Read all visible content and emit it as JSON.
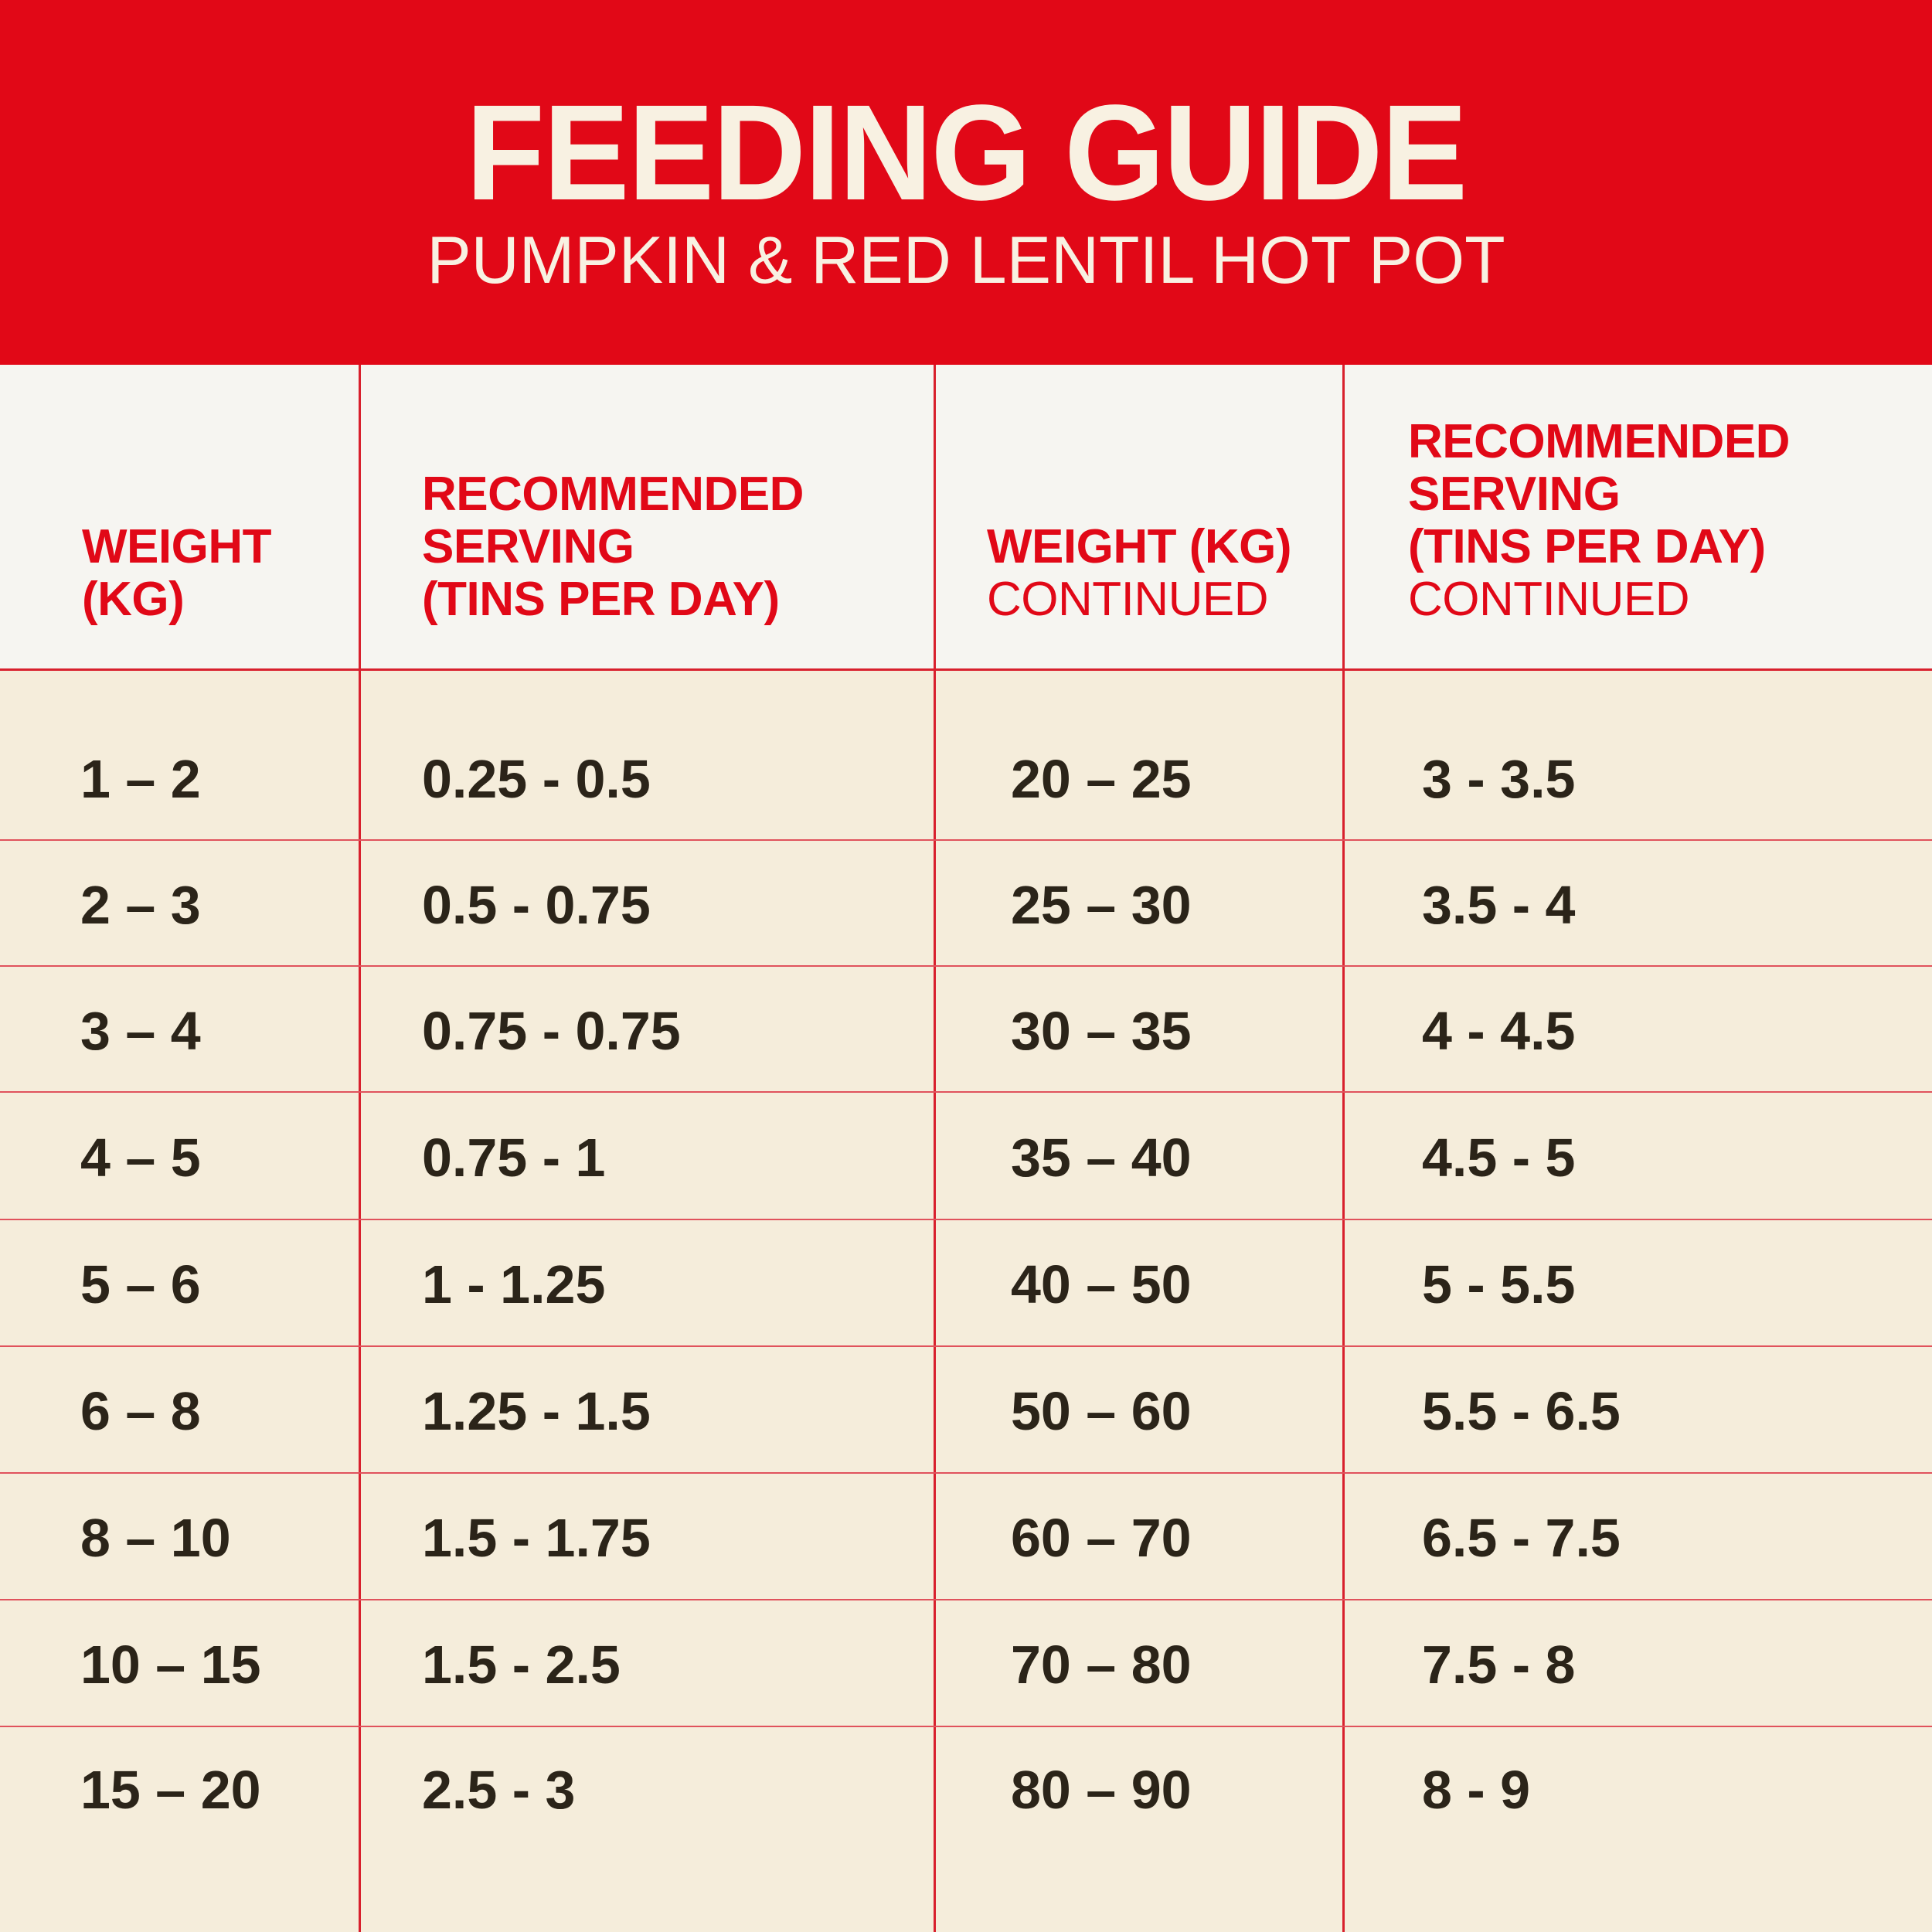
{
  "header": {
    "title": "FEEDING GUIDE",
    "subtitle": "PUMPKIN & RED LENTIL HOT POT"
  },
  "table": {
    "columns": [
      {
        "lines": [
          "WEIGHT",
          "(KG)"
        ],
        "suffix": ""
      },
      {
        "lines": [
          "RECOMMENDED",
          "SERVING",
          "(TINS PER DAY)"
        ],
        "suffix": ""
      },
      {
        "lines": [
          "WEIGHT (KG)"
        ],
        "suffix": "CONTINUED"
      },
      {
        "lines": [
          "RECOMMENDED",
          "SERVING",
          "(TINS PER DAY)"
        ],
        "suffix": "CONTINUED"
      }
    ],
    "rows": [
      [
        "1 – 2",
        "0.25 - 0.5",
        "20 – 25",
        "3 - 3.5"
      ],
      [
        "2 – 3",
        "0.5 - 0.75",
        "25 – 30",
        "3.5 - 4"
      ],
      [
        "3 – 4",
        "0.75 - 0.75",
        "30 – 35",
        "4 - 4.5"
      ],
      [
        "4 – 5",
        "0.75 - 1",
        "35 – 40",
        "4.5 - 5"
      ],
      [
        "5 – 6",
        "1 - 1.25",
        "40 – 50",
        "5 - 5.5"
      ],
      [
        "6 – 8",
        "1.25 - 1.5",
        "50 – 60",
        "5.5 - 6.5"
      ],
      [
        "8 – 10",
        "1.5 - 1.75",
        "60 – 70",
        "6.5 - 7.5"
      ],
      [
        "10 – 15",
        "1.5 - 2.5",
        "70 – 80",
        "7.5 - 8"
      ],
      [
        "15 – 20",
        "2.5 - 3",
        "80 – 90",
        "8 - 9"
      ]
    ]
  },
  "colors": {
    "brand_red": "#e10817",
    "cream": "#f5eddb",
    "header_white": "#f6f5f1",
    "text_dark": "#2b2419"
  }
}
